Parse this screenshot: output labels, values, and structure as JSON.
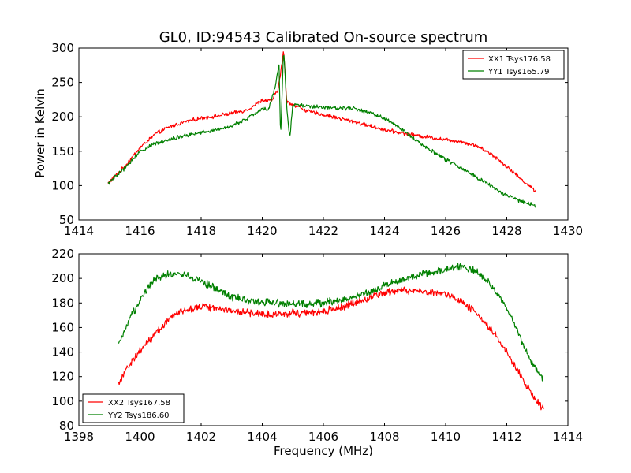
{
  "chart_data": [
    {
      "type": "line",
      "title": "GL0, ID:94543 Calibrated On-source spectrum",
      "xlabel": "",
      "ylabel": "Power in Kelvin",
      "xlim": [
        1414,
        1430
      ],
      "ylim": [
        50,
        300
      ],
      "xticks": [
        1414,
        1416,
        1418,
        1420,
        1422,
        1424,
        1426,
        1428,
        1430
      ],
      "yticks": [
        50,
        100,
        150,
        200,
        250,
        300
      ],
      "legend_position": "upper right",
      "series": [
        {
          "name": "XX1 Tsys176.58",
          "color": "#ff0000",
          "x": [
            1414.95,
            1415.5,
            1416.0,
            1416.5,
            1417.0,
            1417.5,
            1418.0,
            1418.5,
            1419.0,
            1419.5,
            1420.0,
            1420.3,
            1420.5,
            1420.6,
            1420.7,
            1420.8,
            1421.0,
            1421.5,
            1422.0,
            1422.5,
            1423.0,
            1423.5,
            1424.0,
            1424.5,
            1425.0,
            1425.5,
            1426.0,
            1426.5,
            1427.0,
            1427.5,
            1428.0,
            1428.5,
            1428.95
          ],
          "y": [
            103,
            128,
            155,
            175,
            186,
            193,
            198,
            201,
            205,
            210,
            224,
            223,
            238,
            262,
            298,
            222,
            218,
            208,
            203,
            198,
            193,
            187,
            181,
            177,
            173,
            170,
            167,
            164,
            158,
            146,
            128,
            108,
            92
          ]
        },
        {
          "name": "YY1 Tsys165.79",
          "color": "#008000",
          "x": [
            1414.95,
            1415.5,
            1416.0,
            1416.5,
            1417.0,
            1417.5,
            1418.0,
            1418.5,
            1419.0,
            1419.5,
            1420.0,
            1420.2,
            1420.4,
            1420.55,
            1420.6,
            1420.7,
            1420.8,
            1420.9,
            1421.0,
            1421.5,
            1422.0,
            1422.5,
            1423.0,
            1423.5,
            1424.0,
            1424.5,
            1425.0,
            1425.5,
            1426.0,
            1426.5,
            1427.0,
            1427.5,
            1428.0,
            1428.5,
            1428.95
          ],
          "y": [
            103,
            125,
            150,
            161,
            168,
            173,
            177,
            181,
            187,
            197,
            212,
            210,
            240,
            275,
            170,
            300,
            215,
            168,
            218,
            216,
            214,
            213,
            212,
            206,
            198,
            184,
            167,
            152,
            138,
            126,
            113,
            99,
            85,
            77,
            70
          ]
        }
      ]
    },
    {
      "type": "line",
      "title": "",
      "xlabel": "Frequency (MHz)",
      "ylabel": "",
      "xlim": [
        1398,
        1414
      ],
      "ylim": [
        80,
        220
      ],
      "xticks": [
        1398,
        1400,
        1402,
        1404,
        1406,
        1408,
        1410,
        1412,
        1414
      ],
      "yticks": [
        80,
        100,
        120,
        140,
        160,
        180,
        200,
        220
      ],
      "legend_position": "lower left",
      "series": [
        {
          "name": "XX2 Tsys167.58",
          "color": "#ff0000",
          "x": [
            1399.3,
            1399.6,
            1400.0,
            1400.5,
            1401.0,
            1401.5,
            1402.0,
            1402.5,
            1403.0,
            1403.5,
            1404.0,
            1404.5,
            1405.0,
            1405.5,
            1406.0,
            1406.5,
            1407.0,
            1407.5,
            1408.0,
            1408.5,
            1409.0,
            1409.5,
            1410.0,
            1410.5,
            1411.0,
            1411.5,
            1412.0,
            1412.3,
            1412.6,
            1412.9,
            1413.2
          ],
          "y": [
            115,
            128,
            141,
            155,
            168,
            175,
            177,
            176,
            174,
            172,
            171,
            171,
            172,
            172,
            173,
            176,
            180,
            184,
            188,
            190,
            190,
            189,
            187,
            182,
            172,
            158,
            140,
            127,
            114,
            103,
            93
          ]
        },
        {
          "name": "YY2 Tsys186.60",
          "color": "#008000",
          "x": [
            1399.3,
            1399.6,
            1400.0,
            1400.5,
            1401.0,
            1401.5,
            1402.0,
            1402.5,
            1403.0,
            1403.5,
            1404.0,
            1404.5,
            1405.0,
            1405.5,
            1406.0,
            1406.5,
            1407.0,
            1407.5,
            1408.0,
            1408.5,
            1409.0,
            1409.5,
            1410.0,
            1410.5,
            1411.0,
            1411.5,
            1412.0,
            1412.3,
            1412.6,
            1412.9,
            1413.2
          ],
          "y": [
            145,
            163,
            183,
            200,
            204,
            203,
            198,
            191,
            185,
            182,
            181,
            180,
            179,
            179,
            180,
            182,
            185,
            189,
            194,
            198,
            202,
            205,
            207,
            210,
            206,
            194,
            176,
            160,
            142,
            128,
            118
          ]
        }
      ]
    }
  ]
}
